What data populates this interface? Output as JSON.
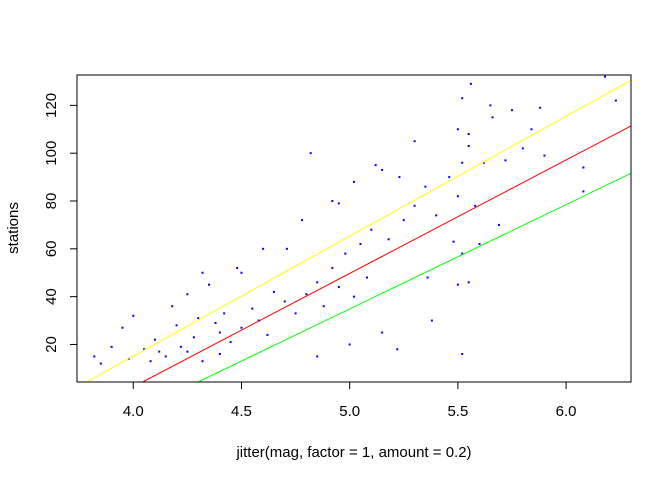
{
  "chart_data": {
    "type": "scatter",
    "title": "",
    "xlabel": "jitter(mag, factor = 1, amount = 0.2)",
    "ylabel": "stations",
    "xlim": [
      3.74,
      6.3
    ],
    "ylim": [
      4.3,
      132.7
    ],
    "x_ticks": [
      4.0,
      4.5,
      5.0,
      5.5,
      6.0
    ],
    "x_tick_labels": [
      "4.0",
      "4.5",
      "5.0",
      "5.5",
      "6.0"
    ],
    "y_ticks": [
      20,
      40,
      60,
      80,
      100,
      120
    ],
    "y_tick_labels": [
      "20",
      "40",
      "60",
      "80",
      "100",
      "120"
    ],
    "grid": false,
    "point_color": "#0000ff",
    "approx_point_count": 1000,
    "series": [
      {
        "values_description": "random scatter points",
        "points": [
          [
            6.18,
            132
          ],
          [
            6.23,
            122
          ],
          [
            5.56,
            129
          ],
          [
            5.52,
            123
          ],
          [
            5.65,
            120
          ],
          [
            5.66,
            115
          ],
          [
            5.75,
            118
          ],
          [
            5.88,
            119
          ],
          [
            5.84,
            110
          ],
          [
            5.5,
            110
          ],
          [
            5.55,
            103
          ],
          [
            5.52,
            96
          ],
          [
            5.55,
            108
          ],
          [
            5.9,
            99
          ],
          [
            5.8,
            102
          ],
          [
            5.72,
            97
          ],
          [
            5.62,
            96
          ],
          [
            5.46,
            90
          ],
          [
            5.35,
            86
          ],
          [
            5.3,
            105
          ],
          [
            4.82,
            100
          ],
          [
            6.08,
            94
          ],
          [
            6.08,
            84
          ],
          [
            5.23,
            90
          ],
          [
            5.15,
            93
          ],
          [
            5.12,
            95
          ],
          [
            5.02,
            88
          ],
          [
            4.95,
            79
          ],
          [
            4.92,
            80
          ],
          [
            5.4,
            74
          ],
          [
            5.5,
            82
          ],
          [
            5.58,
            78
          ],
          [
            5.69,
            70
          ],
          [
            5.6,
            62
          ],
          [
            5.52,
            58
          ],
          [
            5.48,
            63
          ],
          [
            5.5,
            45
          ],
          [
            5.55,
            46
          ],
          [
            5.36,
            48
          ],
          [
            5.38,
            30
          ],
          [
            5.52,
            16
          ],
          [
            5.22,
            18
          ],
          [
            5.15,
            25
          ],
          [
            4.85,
            15
          ],
          [
            5.0,
            20
          ],
          [
            4.78,
            72
          ],
          [
            4.71,
            60
          ],
          [
            4.6,
            60
          ],
          [
            4.5,
            50
          ],
          [
            4.48,
            52
          ],
          [
            4.32,
            50
          ],
          [
            4.25,
            41
          ],
          [
            4.18,
            36
          ],
          [
            4.35,
            45
          ],
          [
            3.82,
            15
          ],
          [
            3.85,
            12
          ],
          [
            3.9,
            19
          ],
          [
            3.95,
            27
          ],
          [
            4.0,
            32
          ],
          [
            4.05,
            18
          ],
          [
            4.1,
            22
          ],
          [
            4.2,
            28
          ],
          [
            4.3,
            31
          ],
          [
            4.4,
            25
          ],
          [
            4.45,
            21
          ],
          [
            4.55,
            35
          ],
          [
            4.65,
            42
          ],
          [
            4.7,
            38
          ],
          [
            4.85,
            46
          ],
          [
            4.92,
            52
          ],
          [
            4.98,
            58
          ],
          [
            5.05,
            62
          ],
          [
            5.1,
            68
          ],
          [
            5.18,
            64
          ],
          [
            5.25,
            72
          ],
          [
            5.3,
            78
          ],
          [
            4.38,
            29
          ],
          [
            4.12,
            17
          ],
          [
            4.22,
            19
          ],
          [
            4.28,
            23
          ],
          [
            4.42,
            33
          ],
          [
            4.5,
            27
          ],
          [
            4.58,
            30
          ],
          [
            4.62,
            24
          ],
          [
            4.75,
            33
          ],
          [
            4.8,
            41
          ],
          [
            4.88,
            36
          ],
          [
            4.95,
            44
          ],
          [
            5.02,
            40
          ],
          [
            5.08,
            48
          ],
          [
            3.98,
            14
          ],
          [
            4.08,
            13
          ],
          [
            4.15,
            15
          ],
          [
            4.25,
            17
          ],
          [
            4.32,
            13
          ],
          [
            4.4,
            16
          ]
        ]
      }
    ],
    "lines": [
      {
        "name": "",
        "color": "#ffff00",
        "intercept": -185.58,
        "slope": 50.17
      },
      {
        "name": "",
        "color": "#ff0000",
        "intercept": -187.55,
        "slope": 47.45
      },
      {
        "name": "",
        "color": "#00ff00",
        "intercept": -183.3,
        "slope": 43.63
      }
    ]
  }
}
